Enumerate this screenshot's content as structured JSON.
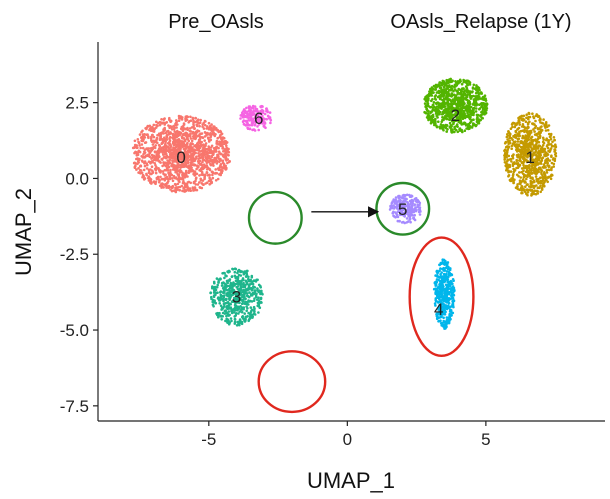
{
  "chart_data": {
    "type": "scatter",
    "titles": [
      "Pre_OAsls",
      "OAsls_Relapse (1Y)"
    ],
    "xlabel": "UMAP_1",
    "ylabel": "UMAP_2",
    "xlim": [
      -9,
      9.3
    ],
    "ylim": [
      -8.0,
      4.5
    ],
    "x_ticks": [
      -5,
      0,
      5
    ],
    "x_tick_labels": [
      "-5",
      "0",
      "5"
    ],
    "y_ticks": [
      2.5,
      0.0,
      -2.5,
      -5.0,
      -7.5
    ],
    "y_tick_labels": [
      "2.5",
      "0.0",
      "-2.5",
      "-5.0",
      "-7.5"
    ],
    "grid": false,
    "clusters": [
      {
        "label": "0",
        "color": "#F8766D",
        "center": [
          -6.0,
          0.8
        ],
        "spread": [
          1.7,
          1.2
        ],
        "count": 1500,
        "label_pos": [
          -6.0,
          0.7
        ]
      },
      {
        "label": "6",
        "color": "#F564E3",
        "center": [
          -3.3,
          2.0
        ],
        "spread": [
          0.55,
          0.4
        ],
        "count": 180,
        "label_pos": [
          -3.2,
          2.0
        ]
      },
      {
        "label": "3",
        "color": "#1FB58C",
        "center": [
          -4.0,
          -3.9
        ],
        "spread": [
          0.9,
          0.9
        ],
        "count": 560,
        "label_pos": [
          -4.0,
          -3.9
        ]
      },
      {
        "label": "2",
        "color": "#53B400",
        "center": [
          3.9,
          2.4
        ],
        "spread": [
          1.1,
          0.85
        ],
        "count": 900,
        "label_pos": [
          3.9,
          2.1
        ]
      },
      {
        "label": "1",
        "color": "#C49A00",
        "center": [
          6.6,
          0.8
        ],
        "spread": [
          0.9,
          1.3
        ],
        "count": 800,
        "label_pos": [
          6.6,
          0.7
        ]
      },
      {
        "label": "5",
        "color": "#A58AFF",
        "center": [
          2.1,
          -1.0
        ],
        "spread": [
          0.55,
          0.45
        ],
        "count": 220,
        "label_pos": [
          2.0,
          -1.0
        ]
      },
      {
        "label": "4",
        "color": "#00B6EB",
        "center": [
          3.5,
          -3.8
        ],
        "spread": [
          0.35,
          1.1
        ],
        "count": 420,
        "label_pos": [
          3.3,
          -4.3
        ]
      }
    ],
    "annotations": [
      {
        "shape": "circle",
        "color": "#2a8a2a",
        "center": [
          -2.6,
          -1.3
        ],
        "radius_x": 0.95,
        "radius_y": 0.85
      },
      {
        "shape": "circle",
        "color": "#e0281e",
        "center": [
          -2.0,
          -6.7
        ],
        "radius_x": 1.2,
        "radius_y": 1.0
      },
      {
        "shape": "circle",
        "color": "#2a8a2a",
        "center": [
          2.0,
          -1.0
        ],
        "radius_x": 0.95,
        "radius_y": 0.85
      },
      {
        "shape": "ellipse",
        "color": "#e0281e",
        "center": [
          3.4,
          -3.9
        ],
        "radius_x": 1.15,
        "radius_y": 1.95
      },
      {
        "shape": "arrow",
        "color": "#111111",
        "from": [
          -1.3,
          -1.1
        ],
        "to": [
          1.1,
          -1.1
        ]
      }
    ]
  }
}
